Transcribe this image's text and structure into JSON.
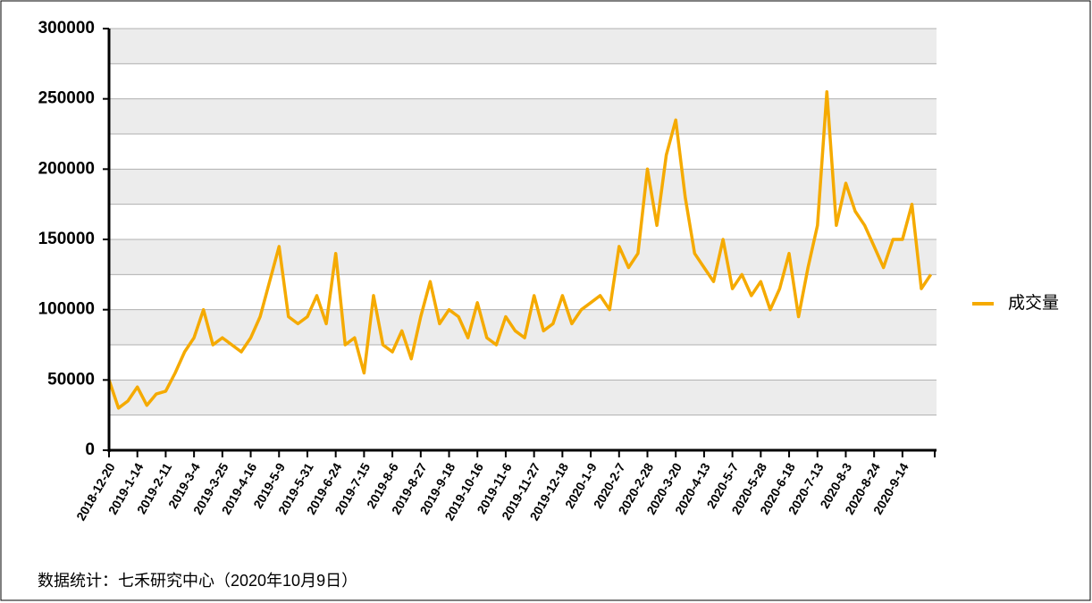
{
  "chart_data": {
    "type": "line",
    "categories": [
      "2018-12-20",
      null,
      null,
      "2019-1-14",
      null,
      null,
      "2019-2-11",
      null,
      null,
      "2019-3-4",
      null,
      null,
      "2019-3-25",
      null,
      null,
      "2019-4-16",
      null,
      null,
      "2019-5-9",
      null,
      null,
      "2019-5-31",
      null,
      null,
      "2019-6-24",
      null,
      null,
      "2019-7-15",
      null,
      null,
      "2019-8-6",
      null,
      null,
      "2019-8-27",
      null,
      null,
      "2019-9-18",
      null,
      null,
      "2019-10-16",
      null,
      null,
      "2019-11-6",
      null,
      null,
      "2019-11-27",
      null,
      null,
      "2019-12-18",
      null,
      null,
      "2020-1-9",
      null,
      null,
      "2020-2-7",
      null,
      null,
      "2020-2-28",
      null,
      null,
      "2020-3-20",
      null,
      null,
      "2020-4-13",
      null,
      null,
      "2020-5-7",
      null,
      null,
      "2020-5-28",
      null,
      null,
      "2020-6-18",
      null,
      null,
      "2020-7-13",
      null,
      null,
      "2020-8-3",
      null,
      null,
      "2020-8-24",
      null,
      null,
      "2020-9-14",
      null,
      null,
      null
    ],
    "series": [
      {
        "name": "成交量",
        "color": "#f5aa00",
        "values": [
          50000,
          30000,
          35000,
          45000,
          32000,
          40000,
          42000,
          55000,
          70000,
          80000,
          100000,
          75000,
          80000,
          75000,
          70000,
          80000,
          95000,
          120000,
          145000,
          95000,
          90000,
          95000,
          110000,
          90000,
          140000,
          75000,
          80000,
          55000,
          110000,
          75000,
          70000,
          85000,
          65000,
          95000,
          120000,
          90000,
          100000,
          95000,
          80000,
          105000,
          80000,
          75000,
          95000,
          85000,
          80000,
          110000,
          85000,
          90000,
          110000,
          90000,
          100000,
          105000,
          110000,
          100000,
          145000,
          130000,
          140000,
          200000,
          160000,
          210000,
          235000,
          180000,
          140000,
          130000,
          120000,
          150000,
          115000,
          125000,
          110000,
          120000,
          100000,
          115000,
          140000,
          95000,
          130000,
          160000,
          255000,
          160000,
          190000,
          170000,
          160000,
          145000,
          130000,
          150000,
          150000,
          175000,
          115000,
          125000
        ]
      }
    ],
    "ylim": [
      0,
      300000
    ],
    "yticks": [
      0,
      50000,
      100000,
      150000,
      200000,
      250000,
      300000
    ],
    "ygrid": [
      0,
      25000,
      50000,
      75000,
      100000,
      125000,
      150000,
      175000,
      200000,
      225000,
      250000,
      275000,
      300000
    ],
    "grid": true,
    "legend": "right",
    "note": "数据统计：七禾研究中心（2020年10月9日）"
  }
}
